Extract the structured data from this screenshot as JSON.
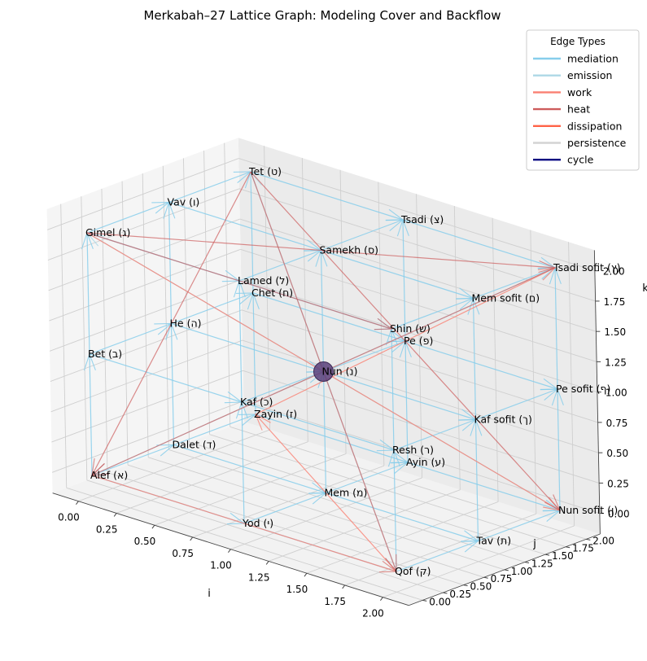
{
  "chart_data": {
    "type": "scatter",
    "title": "Merkabah–27 Lattice Graph: Modeling Cover and Backflow",
    "xlabel": "i",
    "ylabel": "j",
    "zlabel": "k",
    "xlim": [
      0,
      2
    ],
    "ylim": [
      0,
      2
    ],
    "zlim": [
      0,
      2
    ],
    "x_ticks": [
      "0.00",
      "0.25",
      "0.50",
      "0.75",
      "1.00",
      "1.25",
      "1.50",
      "1.75",
      "2.00"
    ],
    "y_ticks": [
      "0.00",
      "0.25",
      "0.50",
      "0.75",
      "1.00",
      "1.25",
      "1.50",
      "1.75",
      "2.00"
    ],
    "z_ticks": [
      "0.00",
      "0.25",
      "0.50",
      "0.75",
      "1.00",
      "1.25",
      "1.50",
      "1.75",
      "2.00"
    ],
    "grid": true,
    "legend": {
      "title": "Edge Types",
      "placement": "top-right",
      "entries": [
        {
          "name": "mediation",
          "color": "#87ceeb"
        },
        {
          "name": "emission",
          "color": "#add8e6"
        },
        {
          "name": "work",
          "color": "#fa8072"
        },
        {
          "name": "heat",
          "color": "#cd5c5c"
        },
        {
          "name": "dissipation",
          "color": "#ff6347"
        },
        {
          "name": "persistence",
          "color": "#d3d3d3"
        },
        {
          "name": "cycle",
          "color": "#000080"
        }
      ]
    },
    "nodes": [
      {
        "label": "Alef (א)",
        "i": 0,
        "j": 0,
        "k": 0
      },
      {
        "label": "Bet (ב)",
        "i": 0,
        "j": 0,
        "k": 1
      },
      {
        "label": "Gimel (ג)",
        "i": 0,
        "j": 0,
        "k": 2
      },
      {
        "label": "Dalet (ד)",
        "i": 0,
        "j": 1,
        "k": 0
      },
      {
        "label": "He (ה)",
        "i": 0,
        "j": 1,
        "k": 1
      },
      {
        "label": "Vav (ו)",
        "i": 0,
        "j": 1,
        "k": 2
      },
      {
        "label": "Zayin (ז)",
        "i": 0,
        "j": 2,
        "k": 0
      },
      {
        "label": "Chet (ח)",
        "i": 0,
        "j": 2,
        "k": 1
      },
      {
        "label": "Tet (ט)",
        "i": 0,
        "j": 2,
        "k": 2
      },
      {
        "label": "Yod (י)",
        "i": 1,
        "j": 0,
        "k": 0
      },
      {
        "label": "Kaf (כ)",
        "i": 1,
        "j": 0,
        "k": 1
      },
      {
        "label": "Lamed (ל)",
        "i": 1,
        "j": 0,
        "k": 2
      },
      {
        "label": "Mem (מ)",
        "i": 1,
        "j": 1,
        "k": 0
      },
      {
        "label": "Nun (נ)",
        "i": 1,
        "j": 1,
        "k": 1
      },
      {
        "label": "Samekh (ס)",
        "i": 1,
        "j": 1,
        "k": 2
      },
      {
        "label": "Ayin (ע)",
        "i": 1,
        "j": 2,
        "k": 0
      },
      {
        "label": "Pe (פ)",
        "i": 1,
        "j": 2,
        "k": 1
      },
      {
        "label": "Tsadi (צ)",
        "i": 1,
        "j": 2,
        "k": 2
      },
      {
        "label": "Qof (ק)",
        "i": 2,
        "j": 0,
        "k": 0
      },
      {
        "label": "Resh (ר)",
        "i": 2,
        "j": 0,
        "k": 1
      },
      {
        "label": "Shin (ש)",
        "i": 2,
        "j": 0,
        "k": 2
      },
      {
        "label": "Tav (ת)",
        "i": 2,
        "j": 1,
        "k": 0
      },
      {
        "label": "Kaf sofit (ך)",
        "i": 2,
        "j": 1,
        "k": 1
      },
      {
        "label": "Mem sofit (ם)",
        "i": 2,
        "j": 1,
        "k": 2
      },
      {
        "label": "Nun sofit (ן)",
        "i": 2,
        "j": 2,
        "k": 0
      },
      {
        "label": "Pe sofit (ף)",
        "i": 2,
        "j": 2,
        "k": 1
      },
      {
        "label": "Tsadi sofit (ץ)",
        "i": 2,
        "j": 2,
        "k": 2
      }
    ],
    "edge_groups": [
      {
        "type": "mediation",
        "rule": "lattice neighbours along i, j and k"
      },
      {
        "type": "emission",
        "rule": "Nun (נ) to Alef, Gimel, Qof, Tet, Nun sofit, Tsadi sofit"
      },
      {
        "type": "work",
        "rule": "Alef to Qof, Qof to Zayin, Zayin to Tsadi sofit, Gimel to Nun sofit"
      },
      {
        "type": "heat",
        "rule": "Tet to Qof, Tet to Alef, Tet to Nun sofit, Gimel to Tsadi sofit, Tsadi sofit to Alef, Gimel to Shin"
      }
    ],
    "highlight_node": "Nun (נ)"
  }
}
